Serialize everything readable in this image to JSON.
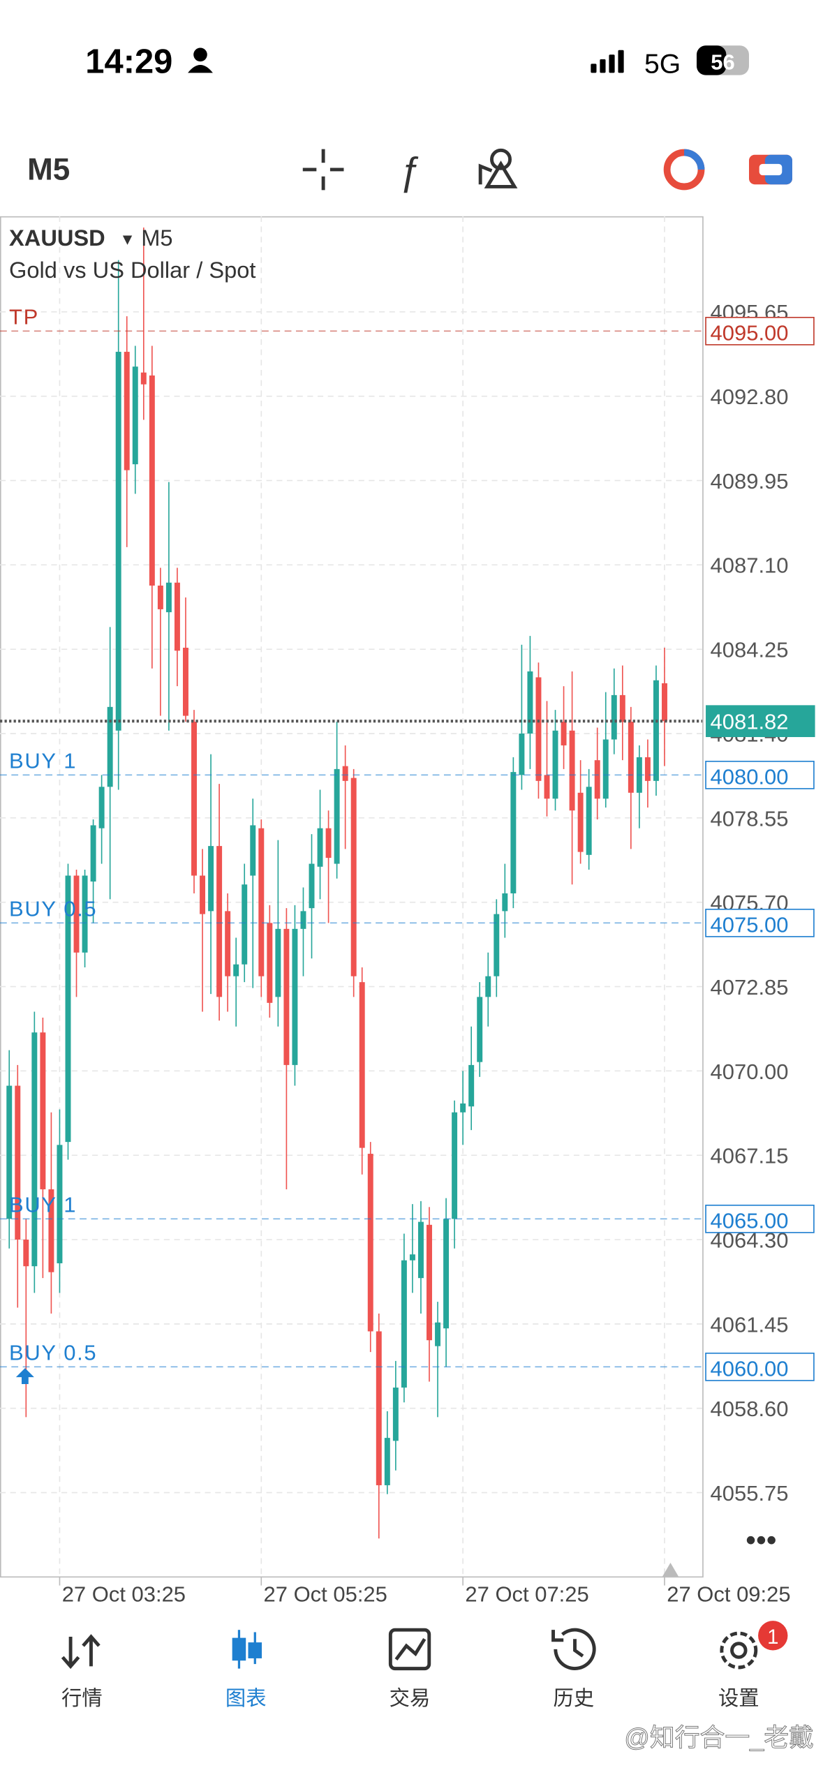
{
  "status_bar": {
    "time": "14:29",
    "network": "5G",
    "battery": "56"
  },
  "toolbar": {
    "timeframe": "M5"
  },
  "chart_data": {
    "type": "candlestick",
    "symbol": "XAUUSD",
    "timeframe": "M5",
    "description": "Gold vs US Dollar / Spot",
    "up_color": "#26a69a",
    "down_color": "#ef5350",
    "grid": true,
    "xlim": [
      -1.1,
      82.5
    ],
    "ylim": [
      4052.92,
      4098.88
    ],
    "xticks": [
      {
        "value": 6,
        "label": "27 Oct 03:25"
      },
      {
        "value": 30,
        "label": "27 Oct 05:25"
      },
      {
        "value": 54,
        "label": "27 Oct 07:25"
      },
      {
        "value": 78,
        "label": "27 Oct 09:25"
      }
    ],
    "yticks": [
      4095.65,
      {
        "value": 4092.8,
        "label": "4092.80"
      },
      4089.95,
      {
        "value": 4087.1,
        "label": "4087.10"
      },
      4084.25,
      {
        "value": 4081.4,
        "label": "4081.40"
      },
      4078.55,
      {
        "value": 4075.7,
        "label": "4075.70"
      },
      4072.85,
      {
        "value": 4070,
        "label": "4070.00"
      },
      4067.15,
      {
        "value": 4064.3,
        "label": "4064.30"
      },
      4061.45,
      {
        "value": 4058.6,
        "label": "4058.60"
      },
      4055.75
    ],
    "open": [
      4065,
      4069.5,
      4064.3,
      4063.4,
      4071.3,
      4066,
      4063.5,
      4067.6,
      4076.6,
      4074,
      4076.4,
      4078.2,
      4079.6,
      4081.5,
      4094.3,
      4090.5,
      4093.6,
      4093.5,
      4086.4,
      4085.5,
      4086.5,
      4084.3,
      4081.8,
      4076.6,
      4075.4,
      4077.6,
      4075.4,
      4073.2,
      4073.6,
      4076.6,
      4078.2,
      4075,
      4072.5,
      4074.8,
      4070.2,
      4074.8,
      4075.5,
      4076.9,
      4078.2,
      4077,
      4080.3,
      4079.9,
      4073,
      4067.2,
      4061.2,
      4056,
      4057.5,
      4059.3,
      4063.6,
      4063,
      4064.8,
      4060.7,
      4061.3,
      4065,
      4068.6,
      4068.8,
      4070.3,
      4072.5,
      4073.2,
      4075.4,
      4076,
      4080,
      4081.4,
      4083.3,
      4080,
      4079.2,
      4081.8,
      4081.5,
      4079.4,
      4077.3,
      4080.5,
      4079.2,
      4081.2,
      4082.7,
      4081.8,
      4079.4,
      4080.6,
      4079.8,
      4083.1
    ],
    "high": [
      4070.7,
      4070.2,
      4065,
      4072,
      4071.8,
      4068.6,
      4068.7,
      4077,
      4076.8,
      4076.8,
      4078.5,
      4080,
      4085,
      4097.4,
      4095.5,
      4094.5,
      4098.5,
      4094.5,
      4087,
      4089.9,
      4087,
      4086,
      4082.2,
      4077.5,
      4080.7,
      4079.7,
      4076,
      4074.5,
      4077,
      4079.2,
      4078.5,
      4075.6,
      4077.8,
      4075.5,
      4075.6,
      4076.2,
      4078,
      4079.5,
      4078.8,
      4081.8,
      4081,
      4080.2,
      4073.5,
      4067.6,
      4061.8,
      4058.5,
      4060.2,
      4064.5,
      4065.5,
      4065.6,
      4065.4,
      4062.2,
      4065.7,
      4069,
      4070,
      4071.5,
      4073,
      4074,
      4075.8,
      4077,
      4080.6,
      4084.4,
      4084.7,
      4083.8,
      4082.5,
      4082.2,
      4083,
      4083.5,
      4080.5,
      4080.2,
      4081.6,
      4082.8,
      4083.6,
      4083.7,
      4082.3,
      4081,
      4081.2,
      4083.7,
      4084.3
    ],
    "low": [
      4064,
      4062,
      4058.3,
      4062.5,
      4063,
      4061.8,
      4062.5,
      4067,
      4072.5,
      4073.5,
      4075,
      4077,
      4075.8,
      4079.5,
      4087.7,
      4089.5,
      4092,
      4083.6,
      4082,
      4081.5,
      4083,
      4081.8,
      4076,
      4072,
      4072.6,
      4071.7,
      4072,
      4071.5,
      4073,
      4072.8,
      4072.5,
      4071.8,
      4071.5,
      4066,
      4069.5,
      4073.2,
      4073.8,
      4075.8,
      4075,
      4076.5,
      4077.5,
      4072.5,
      4066.5,
      4060.5,
      4054.2,
      4055.7,
      4056.5,
      4058.8,
      4062.5,
      4061.8,
      4059.5,
      4058.3,
      4060,
      4064,
      4067.5,
      4068,
      4069.8,
      4071.5,
      4072.5,
      4074.5,
      4075.5,
      4079.5,
      4080.2,
      4079.2,
      4078.6,
      4078.8,
      4080.2,
      4076.3,
      4077,
      4076.8,
      4078.5,
      4078.9,
      4080.7,
      4080.5,
      4077.5,
      4078.2,
      4078.9,
      4079.3,
      4080.3
    ],
    "close": [
      4069.5,
      4064.3,
      4063.4,
      4071.3,
      4066,
      4063.2,
      4067.5,
      4076.6,
      4074,
      4076.6,
      4078.3,
      4079.6,
      4082.3,
      4094.3,
      4090.3,
      4093.8,
      4093.2,
      4086.4,
      4085.6,
      4086.5,
      4084.2,
      4082,
      4076.6,
      4075.3,
      4077.6,
      4072.5,
      4073.2,
      4073.6,
      4076.3,
      4078.3,
      4073.2,
      4072.3,
      4074.8,
      4070.2,
      4074.8,
      4075.4,
      4077,
      4078.2,
      4077.2,
      4080.2,
      4079.8,
      4073.2,
      4067.4,
      4061.2,
      4056,
      4057.6,
      4059.3,
      4063.6,
      4063.8,
      4064.9,
      4060.9,
      4061.5,
      4065,
      4068.6,
      4068.9,
      4070.2,
      4072.5,
      4073.2,
      4075.3,
      4076,
      4080.1,
      4081.4,
      4083.5,
      4079.8,
      4079.2,
      4081.5,
      4081,
      4078.8,
      4077.4,
      4079.6,
      4079.2,
      4081.2,
      4082.7,
      4081.8,
      4079.4,
      4080.6,
      4079.8,
      4083.2,
      4081.82
    ],
    "levels": [
      {
        "label": "TP",
        "price": {
          "value": 4095,
          "label": "4095.00"
        },
        "color": "#c0392b"
      },
      {
        "label": "BUY 1",
        "price": {
          "value": 4080,
          "label": "4080.00"
        },
        "color": "#1e7fd0"
      },
      {
        "label": "BUY 0.5",
        "price": {
          "value": 4075,
          "label": "4075.00"
        },
        "color": "#1e7fd0"
      },
      {
        "label": "BUY 1",
        "price": {
          "value": 4065,
          "label": "4065.00"
        },
        "color": "#1e7fd0"
      },
      {
        "label": "BUY 0.5",
        "price": {
          "value": 4060,
          "label": "4060.00"
        },
        "color": "#1e7fd0"
      }
    ],
    "last_price": {
      "value": 4081.82,
      "color": "#26a69a"
    }
  },
  "tab_bar": {
    "tabs": [
      {
        "label": "行情"
      },
      {
        "label": "图表"
      },
      {
        "label": "交易"
      },
      {
        "label": "历史"
      },
      {
        "label": "设置"
      }
    ],
    "active": 1,
    "badge": "1"
  },
  "watermark": "@知行合一_老戴"
}
